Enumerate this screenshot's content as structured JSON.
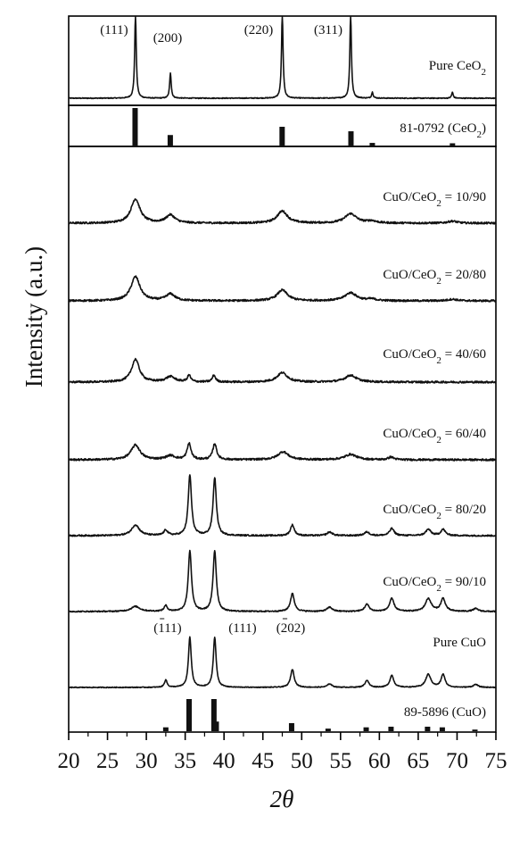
{
  "chart_data": {
    "type": "line",
    "title": "",
    "xlabel": "2θ",
    "ylabel": "Intensity (a.u.)",
    "xlim": [
      20,
      75
    ],
    "xticks": [
      20,
      25,
      30,
      35,
      40,
      45,
      50,
      55,
      60,
      65,
      70,
      75
    ],
    "grid": false,
    "series": [
      {
        "name": "Pure CeO2",
        "label_main": "Pure CeO",
        "label_sub": "2",
        "label_tail": "",
        "peaks": [
          [
            28.6,
            10.0,
            0.12
          ],
          [
            33.1,
            3.0,
            0.12
          ],
          [
            47.5,
            10.0,
            0.12
          ],
          [
            56.3,
            10.0,
            0.12
          ],
          [
            59.1,
            0.7,
            0.12
          ],
          [
            69.4,
            0.7,
            0.12
          ]
        ],
        "noise": 0.05
      },
      {
        "name": "CuO/CeO2 = 10/90",
        "label_main": "CuO/CeO",
        "label_sub": "2",
        "label_tail": " = 10/90",
        "peaks": [
          [
            28.6,
            1.8,
            0.7
          ],
          [
            33.1,
            0.6,
            0.7
          ],
          [
            47.5,
            0.9,
            0.8
          ],
          [
            56.3,
            0.7,
            0.9
          ],
          [
            59.0,
            0.15,
            0.7
          ],
          [
            69.4,
            0.15,
            0.7
          ]
        ],
        "noise": 0.07
      },
      {
        "name": "CuO/CeO2 = 20/80",
        "label_main": "CuO/CeO",
        "label_sub": "2",
        "label_tail": " = 20/80",
        "peaks": [
          [
            28.6,
            1.8,
            0.7
          ],
          [
            33.1,
            0.5,
            0.7
          ],
          [
            47.5,
            0.8,
            0.8
          ],
          [
            56.3,
            0.6,
            0.9
          ],
          [
            59.0,
            0.12,
            0.7
          ],
          [
            69.4,
            0.12,
            0.7
          ]
        ],
        "noise": 0.07
      },
      {
        "name": "CuO/CeO2 = 40/60",
        "label_main": "CuO/CeO",
        "label_sub": "2",
        "label_tail": " = 40/60",
        "peaks": [
          [
            28.6,
            1.7,
            0.6
          ],
          [
            33.1,
            0.4,
            0.7
          ],
          [
            35.5,
            0.5,
            0.25
          ],
          [
            38.7,
            0.5,
            0.25
          ],
          [
            47.5,
            0.7,
            0.8
          ],
          [
            56.3,
            0.5,
            0.9
          ]
        ],
        "noise": 0.07
      },
      {
        "name": "CuO/CeO2 = 60/40",
        "label_main": "CuO/CeO",
        "label_sub": "2",
        "label_tail": " = 60/40",
        "peaks": [
          [
            28.6,
            1.1,
            0.7
          ],
          [
            33.1,
            0.3,
            0.7
          ],
          [
            35.5,
            1.2,
            0.3
          ],
          [
            38.8,
            1.2,
            0.3
          ],
          [
            47.6,
            0.6,
            0.8
          ],
          [
            56.3,
            0.4,
            0.9
          ],
          [
            61.5,
            0.2,
            0.4
          ]
        ],
        "noise": 0.07
      },
      {
        "name": "CuO/CeO2 = 80/20",
        "label_main": "CuO/CeO",
        "label_sub": "2",
        "label_tail": " = 80/20",
        "peaks": [
          [
            28.6,
            1.2,
            0.6
          ],
          [
            32.5,
            0.6,
            0.3
          ],
          [
            35.6,
            6.8,
            0.25
          ],
          [
            38.8,
            6.5,
            0.25
          ],
          [
            48.8,
            1.2,
            0.3
          ],
          [
            53.6,
            0.4,
            0.4
          ],
          [
            58.4,
            0.4,
            0.4
          ],
          [
            61.6,
            0.8,
            0.35
          ],
          [
            66.3,
            0.7,
            0.4
          ],
          [
            68.2,
            0.7,
            0.35
          ]
        ],
        "noise": 0.08
      },
      {
        "name": "CuO/CeO2 = 90/10",
        "label_main": "CuO/CeO",
        "label_sub": "2",
        "label_tail": " = 90/10",
        "peaks": [
          [
            28.6,
            0.7,
            0.7
          ],
          [
            32.5,
            0.8,
            0.25
          ],
          [
            35.6,
            8.5,
            0.25
          ],
          [
            38.8,
            8.5,
            0.25
          ],
          [
            48.8,
            2.5,
            0.3
          ],
          [
            53.6,
            0.6,
            0.4
          ],
          [
            58.4,
            1.0,
            0.35
          ],
          [
            61.6,
            1.8,
            0.35
          ],
          [
            66.3,
            1.8,
            0.45
          ],
          [
            68.2,
            1.8,
            0.35
          ],
          [
            72.4,
            0.4,
            0.4
          ]
        ],
        "noise": 0.08
      },
      {
        "name": "Pure CuO",
        "label_main": "Pure CuO",
        "label_sub": "",
        "label_tail": "",
        "peaks": [
          [
            32.5,
            1.5,
            0.2
          ],
          [
            35.6,
            10.0,
            0.22
          ],
          [
            38.8,
            10.0,
            0.22
          ],
          [
            48.8,
            3.6,
            0.28
          ],
          [
            53.6,
            0.7,
            0.35
          ],
          [
            58.4,
            1.4,
            0.3
          ],
          [
            61.6,
            2.4,
            0.3
          ],
          [
            66.3,
            2.6,
            0.4
          ],
          [
            68.2,
            2.6,
            0.3
          ],
          [
            72.4,
            0.6,
            0.35
          ]
        ],
        "noise": 0.08
      }
    ],
    "reference_patterns": [
      {
        "name": "81-0792 (CeO2)",
        "label_main": "81-0792 (CeO",
        "label_sub": "2",
        "label_tail": ")",
        "lines": [
          [
            28.55,
            100
          ],
          [
            33.08,
            28
          ],
          [
            47.48,
            50
          ],
          [
            56.34,
            38
          ],
          [
            59.09,
            7
          ],
          [
            69.41,
            6
          ]
        ]
      },
      {
        "name": "89-5896 (CuO)",
        "label_main": "89-5896 (CuO)",
        "label_sub": "",
        "label_tail": "",
        "lines": [
          [
            32.5,
            12
          ],
          [
            35.5,
            100
          ],
          [
            38.7,
            100
          ],
          [
            39.0,
            30
          ],
          [
            48.7,
            25
          ],
          [
            53.4,
            8
          ],
          [
            58.3,
            12
          ],
          [
            61.5,
            14
          ],
          [
            66.2,
            14
          ],
          [
            68.1,
            12
          ],
          [
            72.3,
            5
          ]
        ]
      }
    ],
    "peak_labels_ceo2": [
      {
        "text": "(111)",
        "x": 28.6
      },
      {
        "text": "(200)",
        "x": 33.1
      },
      {
        "text": "(220)",
        "x": 47.5
      },
      {
        "text": "(311)",
        "x": 56.3
      }
    ],
    "peak_labels_cuo": [
      {
        "text": "(111)",
        "bar": true,
        "x": 35.6
      },
      {
        "text": "(111)",
        "bar": false,
        "x": 38.8
      },
      {
        "text": "(202)",
        "bar": true,
        "x": 48.8
      }
    ]
  }
}
